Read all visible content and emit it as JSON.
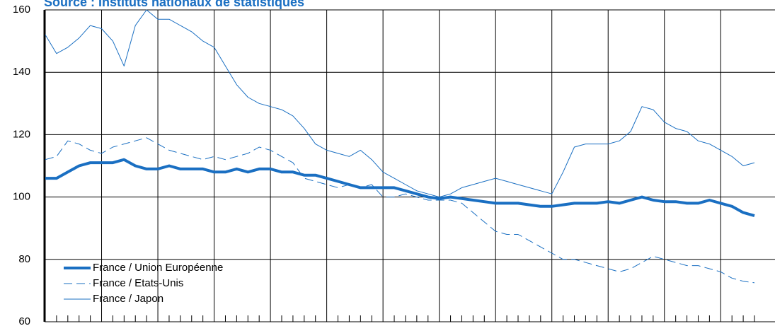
{
  "chart_data": {
    "type": "line",
    "title": "Source : Instituts nationaux de statistiques",
    "categories": [
      null,
      null,
      null,
      null,
      null,
      null,
      null,
      null,
      null,
      null,
      null,
      null,
      null,
      null,
      null,
      null,
      null,
      null,
      null,
      null,
      null,
      null,
      null,
      null,
      null,
      null,
      null,
      null,
      null,
      null,
      null,
      null,
      null,
      null,
      null,
      null,
      null,
      null,
      null,
      null,
      null,
      null,
      null,
      null,
      null,
      null,
      null,
      null,
      null,
      null,
      null,
      null,
      null,
      null,
      null,
      null,
      null,
      null,
      null,
      null,
      null,
      null,
      null,
      null
    ],
    "series": [
      {
        "name": "France / Union Européenne",
        "color": "#1a6fc2",
        "line_width": 4,
        "style": "solid",
        "values": [
          106,
          106,
          108,
          110,
          111,
          111,
          111,
          112,
          110,
          109,
          109,
          110,
          109,
          109,
          109,
          108,
          108,
          109,
          108,
          109,
          109,
          108,
          108,
          107,
          107,
          106,
          105,
          104,
          103,
          103,
          103,
          103,
          102,
          101,
          100,
          99.5,
          100,
          99.5,
          99,
          98.5,
          98,
          98,
          98,
          97.5,
          97,
          97,
          97.5,
          98,
          98,
          98,
          98.5,
          98,
          99,
          100,
          99,
          98.5,
          98.5,
          98,
          98,
          99,
          98,
          97,
          95,
          94
        ]
      },
      {
        "name": "France / Etats-Unis",
        "color": "#1a6fc2",
        "line_width": 1,
        "style": "dashed",
        "values": [
          112,
          113,
          118,
          117,
          115,
          114,
          116,
          117,
          118,
          119,
          117,
          115,
          114,
          113,
          112,
          113,
          112,
          113,
          114,
          116,
          115,
          113,
          111,
          106,
          105,
          104,
          103,
          104,
          103,
          104,
          100,
          100,
          101,
          100,
          99,
          99,
          99,
          98,
          95,
          92,
          89,
          88,
          88,
          86,
          84,
          82,
          80,
          80,
          79,
          78,
          77,
          76,
          77,
          79,
          81,
          80,
          79,
          78,
          78,
          77,
          76,
          74,
          73,
          72.5
        ]
      },
      {
        "name": "France / Japon",
        "color": "#1a6fc2",
        "line_width": 1,
        "style": "solid",
        "values": [
          152,
          146,
          148,
          151,
          155,
          154,
          150,
          142,
          155,
          160,
          157,
          157,
          155,
          153,
          150,
          148,
          142,
          136,
          132,
          130,
          129,
          128,
          126,
          122,
          117,
          115,
          114,
          113,
          115,
          112,
          108,
          106,
          104,
          102,
          101,
          100,
          101,
          103,
          104,
          105,
          106,
          105,
          104,
          103,
          102,
          101,
          108,
          116,
          117,
          117,
          117,
          118,
          121,
          129,
          128,
          124,
          122,
          121,
          118,
          117,
          115,
          113,
          110,
          111
        ]
      }
    ],
    "ylim": [
      60,
      160
    ],
    "yticks": [
      60,
      80,
      100,
      120,
      140,
      160
    ],
    "grid": true,
    "legend": "lower left"
  }
}
